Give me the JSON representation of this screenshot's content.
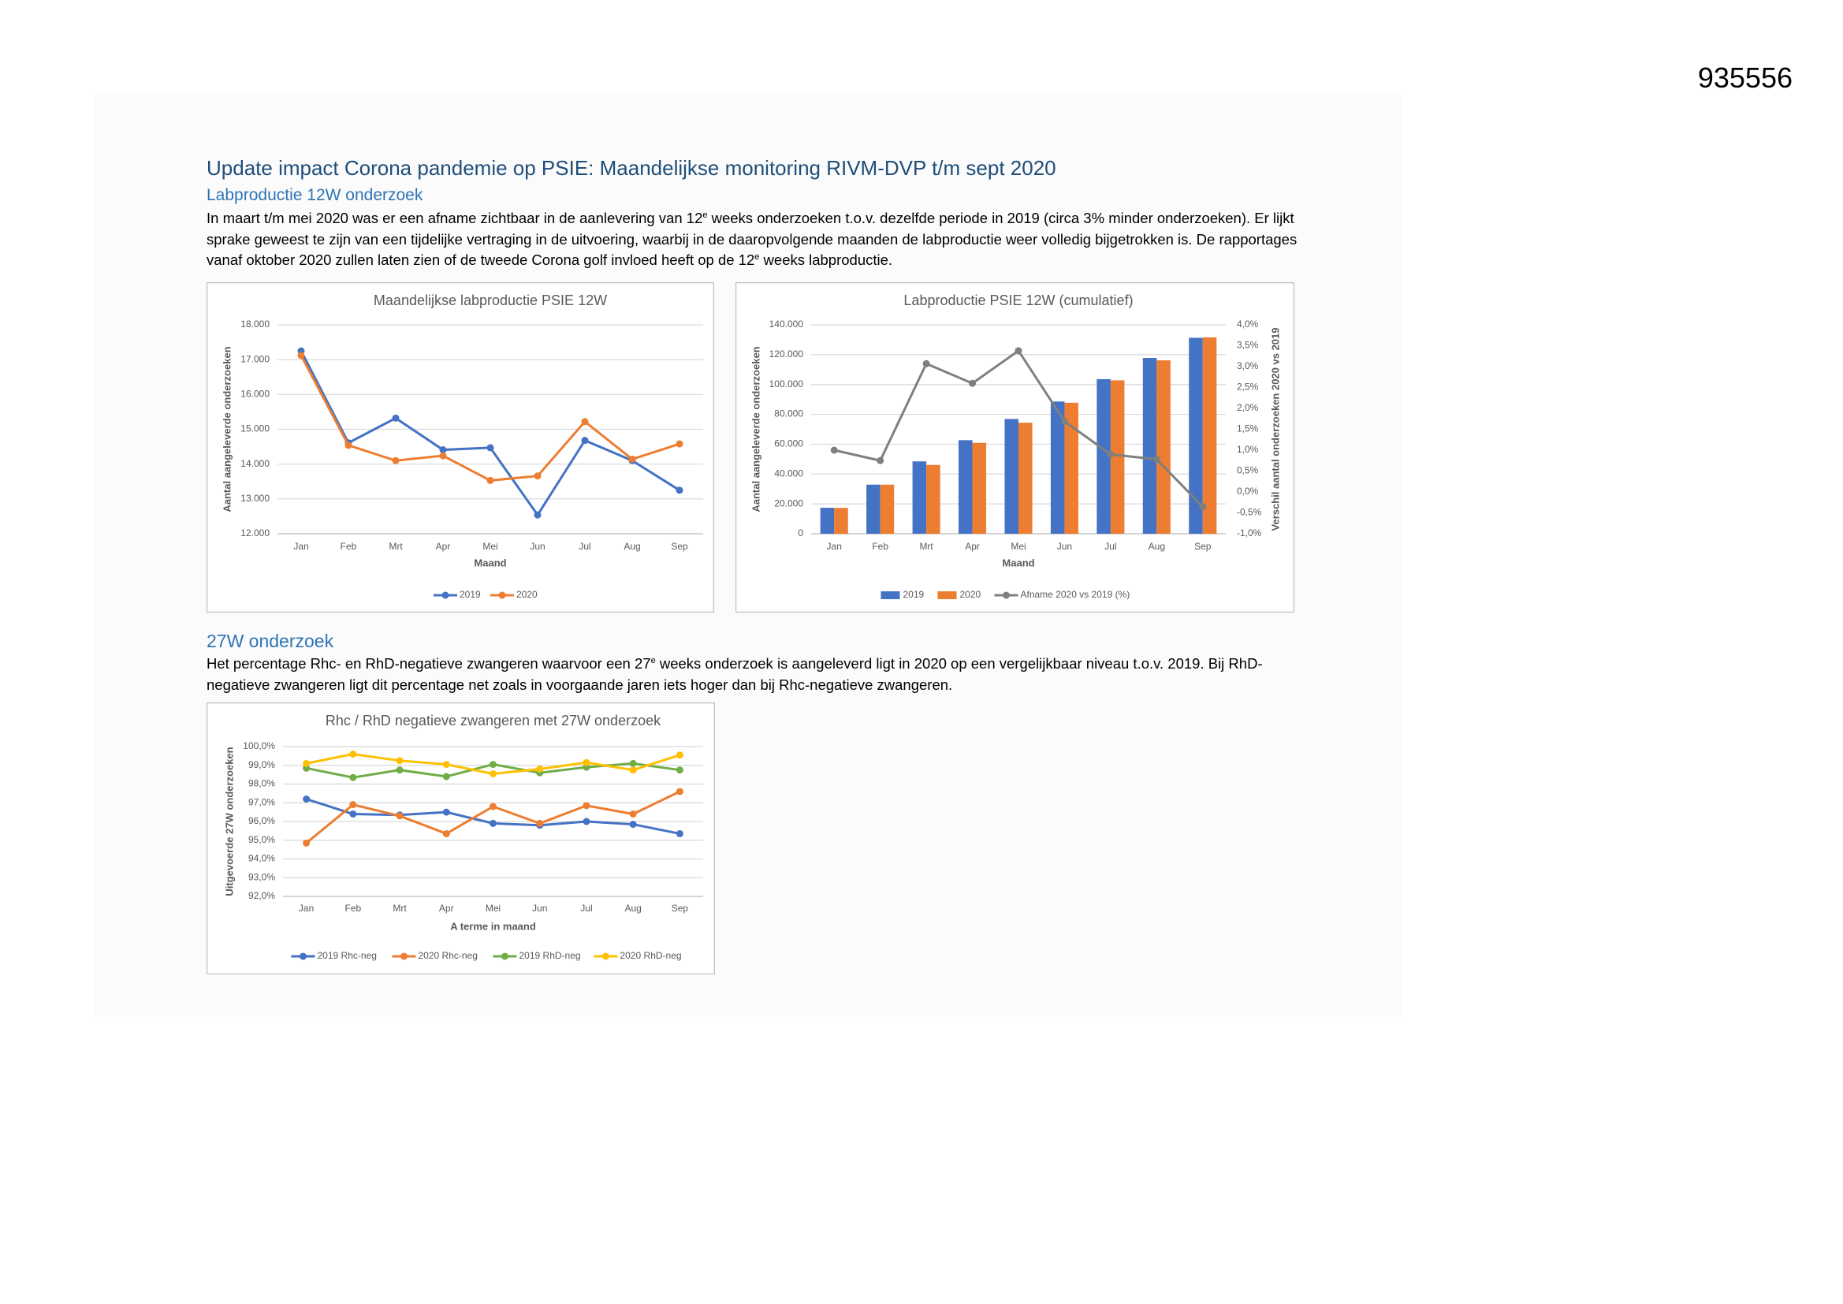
{
  "document": {
    "page_number": "935556",
    "title": "Update impact Corona pandemie op PSIE: Maandelijkse monitoring RIVM-DVP t/m sept 2020",
    "section1_heading": "Labproductie 12W onderzoek",
    "paragraph1": [
      "In maart t/m mei 2020 was er een afname zichtbaar in de aanlevering van 12",
      "e",
      " weeks onderzoeken t.o.v. dezelfde periode in 2019 (circa 3% minder onderzoeken). Er lijkt sprake geweest te zijn van een tijdelijke vertraging in de uitvoering, waarbij in de daaropvolgende maanden de labproductie weer volledig bijgetrokken is. De rapportages vanaf oktober 2020 zullen laten zien of de tweede Corona golf invloed heeft op de 12",
      "e",
      " weeks labproductie."
    ],
    "section2_heading": "27W onderzoek",
    "paragraph2": [
      "Het percentage Rhc- en RhD-negatieve zwangeren waarvoor een 27",
      "e",
      " weeks onderzoek is aangeleverd ligt in 2020 op een vergelijkbaar niveau t.o.v. 2019. Bij RhD-negatieve zwangeren ligt dit percentage net zoals in voorgaande jaren iets hoger dan bij Rhc-negatieve zwangeren."
    ]
  },
  "chart_data": [
    {
      "type": "line",
      "title": "Maandelijkse labproductie PSIE 12W",
      "x_label": "Maand",
      "y_label": "Aantal aangeleverde onderzoeken",
      "categories": [
        "Jan",
        "Feb",
        "Mrt",
        "Apr",
        "Mei",
        "Jun",
        "Jul",
        "Aug",
        "Sep"
      ],
      "series": [
        {
          "name": "2019",
          "color": "#4472c4",
          "values": [
            17250,
            14610,
            15320,
            14410,
            14470,
            12540,
            14680,
            14100,
            13250
          ]
        },
        {
          "name": "2020",
          "color": "#ed7d31",
          "values": [
            17120,
            14540,
            14100,
            14240,
            13530,
            13660,
            15220,
            14140,
            14580
          ]
        }
      ],
      "ylim": [
        12000,
        18000
      ],
      "yticks": [
        {
          "value": 12000,
          "label": "12.000"
        },
        {
          "value": 13000,
          "label": "13.000"
        },
        {
          "value": 14000,
          "label": "14.000"
        },
        {
          "value": 15000,
          "label": "15.000"
        },
        {
          "value": 16000,
          "label": "16.000"
        },
        {
          "value": 17000,
          "label": "17.000"
        },
        {
          "value": 18000,
          "label": "18.000"
        }
      ],
      "grid": true
    },
    {
      "type": "bar",
      "title": "Labproductie PSIE 12W (cumulatief)",
      "x_label": "Maand",
      "y_label": "Aantal aangeleverde onderzoeken",
      "y2_label": "Verschil aantal onderzoeken 2020 vs 2019",
      "categories": [
        "Jan",
        "Feb",
        "Mrt",
        "Apr",
        "Mei",
        "Jun",
        "Jul",
        "Aug",
        "Sep"
      ],
      "series": [
        {
          "name": "2019",
          "color": "#4472c4",
          "values": [
            17400,
            32900,
            48500,
            62700,
            76900,
            88600,
            103600,
            117800,
            131300
          ]
        },
        {
          "name": "2020",
          "color": "#ed7d31",
          "values": [
            17300,
            32900,
            46100,
            60900,
            74400,
            87800,
            102800,
            116200,
            131600
          ]
        },
        {
          "name": "Afname 2020 vs 2019 (%)",
          "color": "#7f7f7f",
          "type": "line",
          "axis": "y2",
          "values": [
            1.0,
            0.75,
            3.07,
            2.6,
            3.38,
            1.69,
            0.9,
            0.78,
            -0.35
          ]
        }
      ],
      "ylim": [
        0,
        140000
      ],
      "yticks": [
        0,
        {
          "value": 20000,
          "label": "20.000"
        },
        {
          "value": 40000,
          "label": "40.000"
        },
        {
          "value": 60000,
          "label": "60.000"
        },
        {
          "value": 80000,
          "label": "80.000"
        },
        {
          "value": 100000,
          "label": "100.000"
        },
        {
          "value": 120000,
          "label": "120.000"
        },
        {
          "value": 140000,
          "label": "140.000"
        }
      ],
      "y2lim": [
        -1.0,
        4.0
      ],
      "y2ticks": [
        {
          "value": -1.0,
          "label": "-1,0%"
        },
        {
          "value": -0.5,
          "label": "-0,5%"
        },
        {
          "value": 0,
          "label": "0,0%"
        },
        {
          "value": 0.5,
          "label": "0,5%"
        },
        {
          "value": 1.0,
          "label": "1,0%"
        },
        {
          "value": 1.5,
          "label": "1,5%"
        },
        {
          "value": 2.0,
          "label": "2,0%"
        },
        {
          "value": 2.5,
          "label": "2,5%"
        },
        {
          "value": 3.0,
          "label": "3,0%"
        },
        {
          "value": 3.5,
          "label": "3,5%"
        },
        {
          "value": 4.0,
          "label": "4,0%"
        }
      ],
      "grid": true
    },
    {
      "type": "line",
      "title": "Rhc / RhD negatieve zwangeren met 27W onderzoek",
      "x_label": "A terme in maand",
      "y_label": "Uitgevoerde 27W onderzoeken",
      "categories": [
        "Jan",
        "Feb",
        "Mrt",
        "Apr",
        "Mei",
        "Jun",
        "Jul",
        "Aug",
        "Sep"
      ],
      "series": [
        {
          "name": "2019 Rhc-neg",
          "color": "#4472c4",
          "values": [
            97.2,
            96.4,
            96.35,
            96.5,
            95.9,
            95.8,
            96.0,
            95.85,
            95.35
          ]
        },
        {
          "name": "2020 Rhc-neg",
          "color": "#ed7d31",
          "values": [
            94.85,
            96.9,
            96.3,
            95.35,
            96.8,
            95.9,
            96.85,
            96.4,
            97.6
          ]
        },
        {
          "name": "2019 RhD-neg",
          "color": "#70ad47",
          "values": [
            98.85,
            98.35,
            98.75,
            98.4,
            99.05,
            98.6,
            98.9,
            99.1,
            98.75
          ]
        },
        {
          "name": "2020 RhD-neg",
          "color": "#ffc000",
          "values": [
            99.1,
            99.6,
            99.25,
            99.05,
            98.55,
            98.8,
            99.15,
            98.75,
            99.55
          ]
        }
      ],
      "ylim": [
        92,
        100
      ],
      "yticks": [
        {
          "value": 92,
          "label": "92,0%"
        },
        {
          "value": 93,
          "label": "93,0%"
        },
        {
          "value": 94,
          "label": "94,0%"
        },
        {
          "value": 95,
          "label": "95,0%"
        },
        {
          "value": 96,
          "label": "96,0%"
        },
        {
          "value": 97,
          "label": "97,0%"
        },
        {
          "value": 98,
          "label": "98,0%"
        },
        {
          "value": 99,
          "label": "99,0%"
        },
        {
          "value": 100,
          "label": "100,0%"
        }
      ],
      "grid": true
    }
  ]
}
